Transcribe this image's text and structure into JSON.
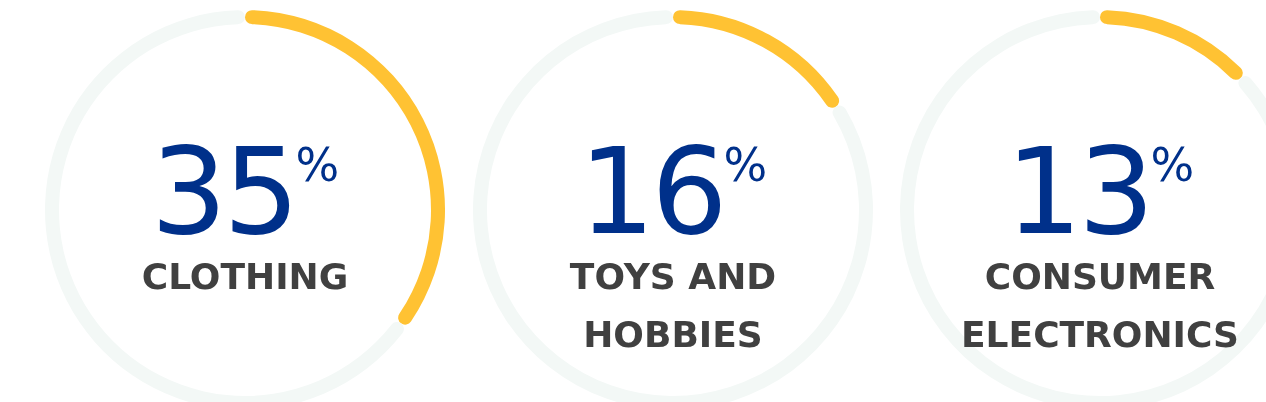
{
  "chart_data": [
    {
      "type": "donut",
      "categories": [
        "CLOTHING",
        null
      ],
      "values": [
        35,
        65
      ],
      "colors": [
        "#ffc233",
        "#f3f8f6"
      ],
      "value_labels": [
        "35$^{%}$",
        null
      ]
    },
    {
      "type": "donut",
      "categories": [
        "TOYS AND HOBBIES",
        null
      ],
      "values": [
        16,
        84
      ],
      "colors": [
        "#ffc233",
        "#f3f8f6"
      ],
      "value_labels": [
        "16$^{%}$",
        null
      ]
    },
    {
      "type": "donut",
      "categories": [
        "CONSUMER ELECTRONICS",
        null
      ],
      "values": [
        13,
        87
      ],
      "colors": [
        "#ffc233",
        "#f3f8f6"
      ],
      "value_labels": [
        "13$^{%}$",
        null
      ]
    }
  ]
}
